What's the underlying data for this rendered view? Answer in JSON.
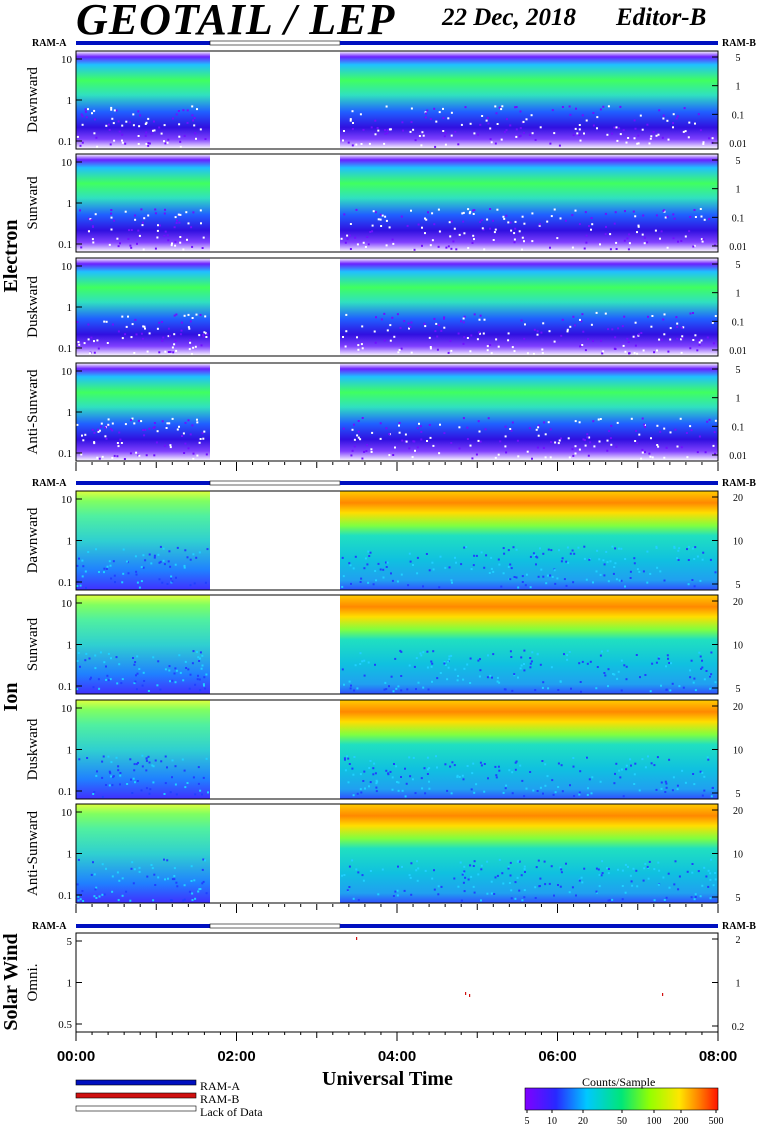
{
  "header": {
    "title": "GEOTAIL / LEP",
    "date": "22 Dec, 2018",
    "editor": "Editor-B"
  },
  "x_axis": {
    "title": "Universal Time",
    "ticks": [
      "00:00",
      "02:00",
      "04:00",
      "06:00",
      "08:00"
    ]
  },
  "legend": {
    "items": [
      {
        "label": "RAM-A",
        "color": "#0010c0"
      },
      {
        "label": "RAM-B",
        "color": "#d01010"
      },
      {
        "label": "Lack of Data",
        "color": "#ffffff"
      }
    ]
  },
  "colorbar": {
    "title": "Counts/Sample",
    "ticks": [
      "5",
      "10",
      "20",
      "50",
      "100",
      "200",
      "500"
    ]
  },
  "sections": {
    "electron": "Electron",
    "ion": "Ion",
    "solar_wind": "Solar Wind"
  },
  "chart_data": {
    "type": "heatmap",
    "time_range": [
      "00:00",
      "08:00"
    ],
    "data_gap": [
      "01:40",
      "03:15"
    ],
    "ram_label_left": "RAM-A",
    "ram_label_right": "RAM-B",
    "panels": [
      {
        "group": "Electron",
        "label": "Dawnward",
        "yticks_left": [
          "10",
          "1",
          "0.1"
        ],
        "yticks_right": [
          "5",
          "1",
          "0.1",
          "0.01"
        ]
      },
      {
        "group": "Electron",
        "label": "Sunward",
        "yticks_left": [
          "10",
          "1",
          "0.1"
        ],
        "yticks_right": [
          "5",
          "1",
          "0.1",
          "0.01"
        ]
      },
      {
        "group": "Electron",
        "label": "Duskward",
        "yticks_left": [
          "10",
          "1",
          "0.1"
        ],
        "yticks_right": [
          "5",
          "1",
          "0.1",
          "0.01"
        ]
      },
      {
        "group": "Electron",
        "label": "Anti-Sunward",
        "yticks_left": [
          "10",
          "1",
          "0.1"
        ],
        "yticks_right": [
          "5",
          "1",
          "0.1",
          "0.01"
        ]
      },
      {
        "group": "Ion",
        "label": "Dawnward",
        "yticks_left": [
          "10",
          "1",
          "0.1"
        ],
        "yticks_right": [
          "20",
          "10",
          "5"
        ]
      },
      {
        "group": "Ion",
        "label": "Sunward",
        "yticks_left": [
          "10",
          "1",
          "0.1"
        ],
        "yticks_right": [
          "20",
          "10",
          "5"
        ]
      },
      {
        "group": "Ion",
        "label": "Duskward",
        "yticks_left": [
          "10",
          "1",
          "0.1"
        ],
        "yticks_right": [
          "20",
          "10",
          "5"
        ]
      },
      {
        "group": "Ion",
        "label": "Anti-Sunward",
        "yticks_left": [
          "10",
          "1",
          "0.1"
        ],
        "yticks_right": [
          "20",
          "10",
          "5"
        ]
      },
      {
        "group": "Solar Wind",
        "label": "Omni.",
        "yticks_left": [
          "5",
          "1",
          "0.5"
        ],
        "yticks_right": [
          "2",
          "1",
          "0.2"
        ]
      }
    ]
  }
}
